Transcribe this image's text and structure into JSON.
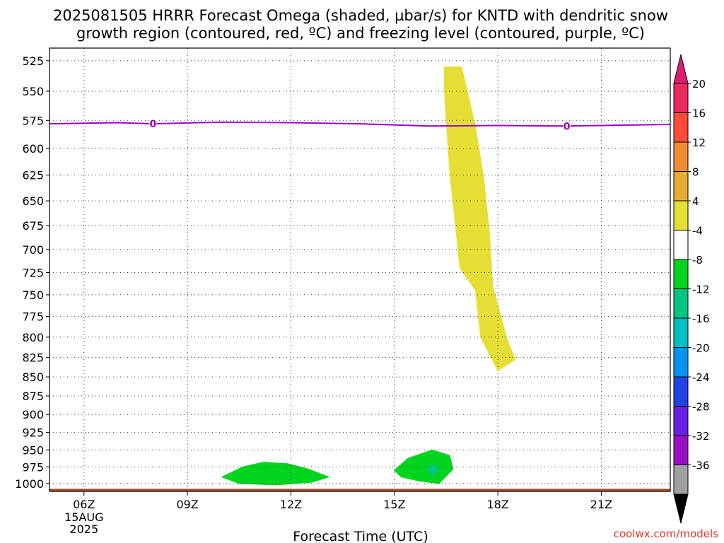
{
  "chart_data": {
    "type": "heatmap",
    "title_lines": [
      "2025081505 HRRR Forecast Omega (shaded, µbar/s) for KNTD with dendritic snow",
      "growth region (contoured, red, ºC) and freezing level (contoured, purple, ºC)"
    ],
    "xlabel": "Forecast Time (UTC)",
    "x_ticks": [
      "06Z",
      "09Z",
      "12Z",
      "15Z",
      "18Z",
      "21Z"
    ],
    "x_tick_hours": [
      6,
      9,
      12,
      15,
      18,
      21
    ],
    "x_first_tick_sub": [
      "15AUG",
      "2025"
    ],
    "xlim_hours": [
      5,
      23
    ],
    "y_ticks": [
      525,
      550,
      575,
      600,
      625,
      650,
      675,
      700,
      725,
      750,
      775,
      800,
      825,
      850,
      875,
      900,
      925,
      950,
      975,
      1000
    ],
    "ylim_hpa": [
      515,
      1012
    ],
    "y_scale": "log-pressure (inverted)",
    "grid": "dotted",
    "colorbar": {
      "labels": [
        "20",
        "16",
        "12",
        "8",
        "4",
        "-4",
        "-8",
        "-12",
        "-16",
        "-20",
        "-24",
        "-28",
        "-32",
        "-36"
      ],
      "colors": [
        "#ea2a5d",
        "#ff4b3a",
        "#f08c32",
        "#e8ad30",
        "#e5df35",
        "#ffffff",
        "#00d41f",
        "#00c583",
        "#00bfc4",
        "#0094f5",
        "#1f44e4",
        "#6a1ee6",
        "#9b0ec6",
        "#a0a0a0"
      ],
      "top_arrow_color": "#e01c72",
      "bottom_arrow_color": "#000000"
    },
    "freezing_level": {
      "color": "#9900cc",
      "label": "0",
      "label_hours": [
        8,
        20
      ],
      "points": [
        [
          5,
          578
        ],
        [
          7,
          577
        ],
        [
          8,
          578
        ],
        [
          10,
          576.5
        ],
        [
          12,
          577
        ],
        [
          14,
          578
        ],
        [
          16,
          580
        ],
        [
          18,
          579.5
        ],
        [
          20,
          580
        ],
        [
          22,
          579
        ],
        [
          23,
          578.5
        ]
      ]
    },
    "shaded_regions": [
      {
        "color": "#e5df35",
        "value_range": "4 to 8",
        "points": [
          [
            16.45,
            530
          ],
          [
            16.95,
            530
          ],
          [
            17.35,
            580
          ],
          [
            17.6,
            630
          ],
          [
            17.75,
            680
          ],
          [
            17.85,
            740
          ],
          [
            18.25,
            800
          ],
          [
            18.5,
            828
          ],
          [
            18.0,
            842
          ],
          [
            17.5,
            800
          ],
          [
            17.35,
            745
          ],
          [
            16.9,
            720
          ],
          [
            16.6,
            620
          ],
          [
            16.45,
            550
          ]
        ]
      },
      {
        "color": "#00d41f",
        "value_range": "-4 to -8",
        "points": [
          [
            10.0,
            990
          ],
          [
            10.6,
            975
          ],
          [
            11.2,
            968
          ],
          [
            11.9,
            970
          ],
          [
            12.5,
            978
          ],
          [
            13.1,
            990
          ],
          [
            12.6,
            998
          ],
          [
            11.6,
            1002
          ],
          [
            10.5,
            1000
          ]
        ]
      },
      {
        "color": "#00d41f",
        "value_range": "-4 to -8",
        "points": [
          [
            15.0,
            980
          ],
          [
            15.4,
            962
          ],
          [
            16.1,
            950
          ],
          [
            16.6,
            958
          ],
          [
            16.7,
            978
          ],
          [
            16.3,
            1000
          ],
          [
            15.7,
            996
          ],
          [
            15.2,
            990
          ]
        ]
      },
      {
        "color": "#00c583",
        "value_range": "-8 to -12",
        "points": [
          [
            15.95,
            977
          ],
          [
            16.1,
            971
          ],
          [
            16.3,
            979
          ],
          [
            16.1,
            988
          ]
        ]
      }
    ],
    "terrain_band": {
      "color": "#a0522d",
      "pressure_top": 1008
    },
    "credit": "coolwx.com/models",
    "credit_color": "#e0362a"
  }
}
